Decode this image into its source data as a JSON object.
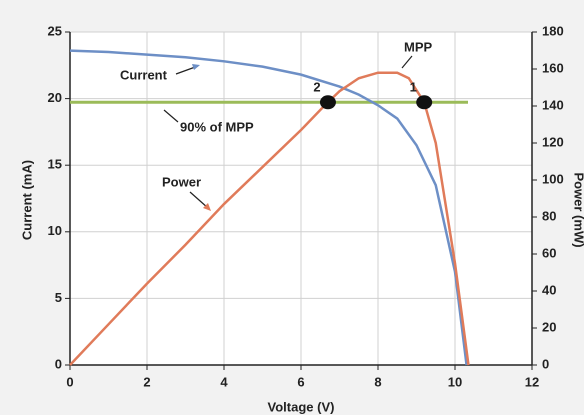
{
  "chart_data": {
    "type": "line",
    "xlabel": "Voltage (V)",
    "ylabel": "Current (mA)",
    "y2label": "Power (mW)",
    "xlim": [
      0,
      12
    ],
    "xticks": [
      0,
      2,
      4,
      6,
      8,
      10,
      12
    ],
    "ylim": [
      0,
      25
    ],
    "yticks": [
      0,
      5,
      10,
      15,
      20,
      25
    ],
    "y2lim": [
      0,
      180
    ],
    "y2ticks": [
      0,
      20,
      40,
      60,
      80,
      100,
      120,
      140,
      160,
      180
    ],
    "grid": true,
    "series": [
      {
        "name": "Current",
        "color": "#6d8fc6",
        "axis": "y",
        "x": [
          0,
          1,
          2,
          3,
          4,
          5,
          6,
          7,
          7.5,
          8,
          8.5,
          9,
          9.5,
          10,
          10.3
        ],
        "values": [
          23.6,
          23.5,
          23.3,
          23.1,
          22.8,
          22.4,
          21.8,
          20.9,
          20.3,
          19.5,
          18.5,
          16.5,
          13.5,
          7,
          0
        ]
      },
      {
        "name": "Power",
        "color": "#e07b5a",
        "axis": "y2",
        "x": [
          0,
          1,
          2,
          3,
          4,
          5,
          6,
          6.6,
          7,
          7.5,
          8,
          8.5,
          8.8,
          9.2,
          9.5,
          10,
          10.35
        ],
        "values": [
          0,
          22,
          44,
          65,
          87,
          107,
          127,
          140,
          148,
          155,
          158,
          158,
          155,
          142,
          120,
          55,
          0
        ]
      }
    ],
    "reference_line": {
      "label": "90% of MPP",
      "value": 142,
      "axis": "y2",
      "color": "#9bbb59"
    },
    "peak_label": "MPP",
    "markers": [
      {
        "label": "1",
        "x": 9.2,
        "y": 142
      },
      {
        "label": "2",
        "x": 6.7,
        "y": 142
      }
    ]
  }
}
